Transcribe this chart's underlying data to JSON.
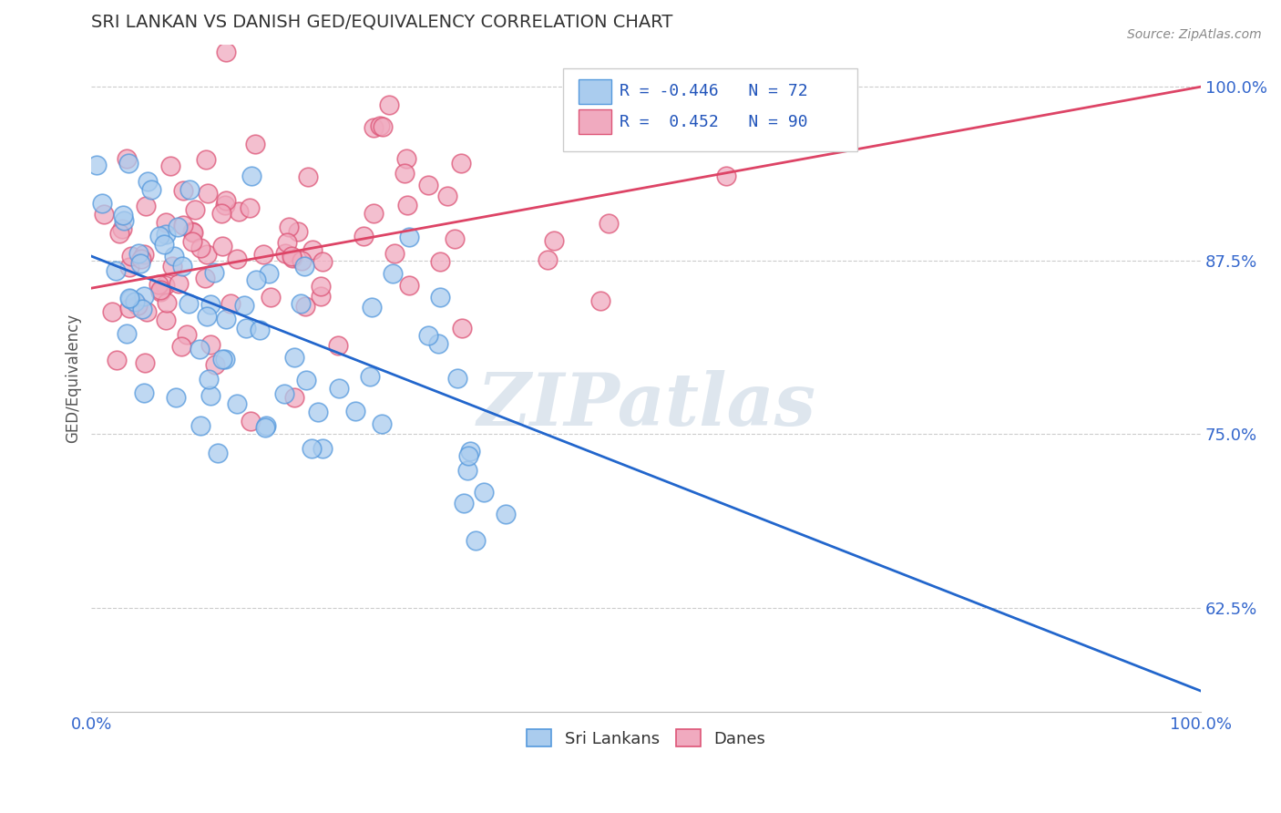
{
  "title": "SRI LANKAN VS DANISH GED/EQUIVALENCY CORRELATION CHART",
  "source": "Source: ZipAtlas.com",
  "ylabel": "GED/Equivalency",
  "ylim": [
    0.55,
    1.03
  ],
  "xlim": [
    0.0,
    1.0
  ],
  "ytick_positions": [
    0.625,
    0.75,
    0.875,
    1.0
  ],
  "ytick_labels": [
    "62.5%",
    "75.0%",
    "87.5%",
    "100.0%"
  ],
  "xtick_positions": [
    0.0,
    1.0
  ],
  "xtick_labels": [
    "0.0%",
    "100.0%"
  ],
  "sri_lankan_color": "#aaccee",
  "danish_color": "#f0aabf",
  "sri_lankan_edge_color": "#5599dd",
  "danish_edge_color": "#dd5577",
  "sri_lankan_line_color": "#2266cc",
  "danish_line_color": "#dd4466",
  "sri_lankan_R": -0.446,
  "sri_lankan_N": 72,
  "danish_R": 0.452,
  "danish_N": 90,
  "watermark_text": "ZIPatlas",
  "legend_label_1": "Sri Lankans",
  "legend_label_2": "Danes",
  "sl_line_x0": 0.0,
  "sl_line_y0": 0.878,
  "sl_line_x1": 1.0,
  "sl_line_y1": 0.565,
  "dk_line_x0": 0.0,
  "dk_line_y0": 0.855,
  "dk_line_x1": 1.0,
  "dk_line_y1": 1.0
}
